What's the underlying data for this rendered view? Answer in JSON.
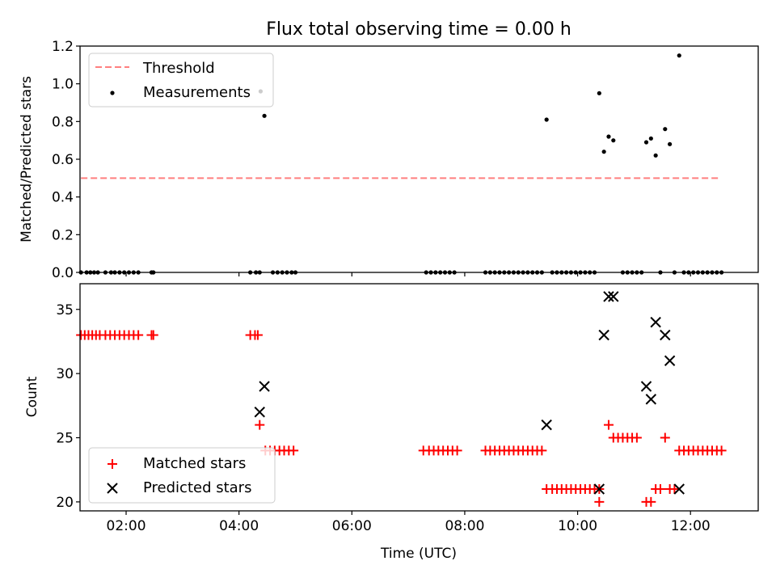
{
  "chart_data": [
    {
      "type": "scatter",
      "title": "Flux total observing time = 0.00 h",
      "xlabel": "",
      "ylabel": "Matched/Predicted stars",
      "xlim": [
        "01:11",
        "13:12"
      ],
      "ylim": [
        0,
        1.2
      ],
      "yticks": [
        "0.0",
        "0.2",
        "0.4",
        "0.6",
        "0.8",
        "1.0",
        "1.2"
      ],
      "legend": {
        "position": "top-left"
      },
      "series": [
        {
          "name": "Threshold",
          "style": "dashed-line",
          "color": "#ff7f7f",
          "points": [
            {
              "x": "01:12",
              "y": 0.5
            },
            {
              "x": "12:31",
              "y": 0.5
            }
          ]
        },
        {
          "name": "Measurements",
          "style": "dots",
          "color": "#000000",
          "points": [
            {
              "x": "01:12",
              "y": 0
            },
            {
              "x": "01:18",
              "y": 0
            },
            {
              "x": "01:22",
              "y": 0
            },
            {
              "x": "01:26",
              "y": 0
            },
            {
              "x": "01:30",
              "y": 0
            },
            {
              "x": "01:38",
              "y": 0
            },
            {
              "x": "01:44",
              "y": 0
            },
            {
              "x": "01:48",
              "y": 0
            },
            {
              "x": "01:53",
              "y": 0
            },
            {
              "x": "01:58",
              "y": 0
            },
            {
              "x": "02:03",
              "y": 0
            },
            {
              "x": "02:08",
              "y": 0
            },
            {
              "x": "02:13",
              "y": 0
            },
            {
              "x": "02:27",
              "y": 0
            },
            {
              "x": "02:29",
              "y": 0
            },
            {
              "x": "04:12",
              "y": 0
            },
            {
              "x": "04:18",
              "y": 0
            },
            {
              "x": "04:22",
              "y": 0
            },
            {
              "x": "04:23",
              "y": 0.96
            },
            {
              "x": "04:27",
              "y": 0.83
            },
            {
              "x": "04:36",
              "y": 0
            },
            {
              "x": "04:41",
              "y": 0
            },
            {
              "x": "04:46",
              "y": 0
            },
            {
              "x": "04:51",
              "y": 0
            },
            {
              "x": "04:56",
              "y": 0
            },
            {
              "x": "05:00",
              "y": 0
            },
            {
              "x": "07:19",
              "y": 0
            },
            {
              "x": "07:24",
              "y": 0
            },
            {
              "x": "07:29",
              "y": 0
            },
            {
              "x": "07:34",
              "y": 0
            },
            {
              "x": "07:39",
              "y": 0
            },
            {
              "x": "07:44",
              "y": 0
            },
            {
              "x": "07:49",
              "y": 0
            },
            {
              "x": "08:22",
              "y": 0
            },
            {
              "x": "08:27",
              "y": 0
            },
            {
              "x": "08:32",
              "y": 0
            },
            {
              "x": "08:37",
              "y": 0
            },
            {
              "x": "08:42",
              "y": 0
            },
            {
              "x": "08:47",
              "y": 0
            },
            {
              "x": "08:52",
              "y": 0
            },
            {
              "x": "08:57",
              "y": 0
            },
            {
              "x": "09:02",
              "y": 0
            },
            {
              "x": "09:07",
              "y": 0
            },
            {
              "x": "09:12",
              "y": 0
            },
            {
              "x": "09:17",
              "y": 0
            },
            {
              "x": "09:22",
              "y": 0
            },
            {
              "x": "09:27",
              "y": 0.81
            },
            {
              "x": "09:33",
              "y": 0
            },
            {
              "x": "09:38",
              "y": 0
            },
            {
              "x": "09:43",
              "y": 0
            },
            {
              "x": "09:48",
              "y": 0
            },
            {
              "x": "09:53",
              "y": 0
            },
            {
              "x": "09:58",
              "y": 0
            },
            {
              "x": "10:03",
              "y": 0
            },
            {
              "x": "10:08",
              "y": 0
            },
            {
              "x": "10:13",
              "y": 0
            },
            {
              "x": "10:18",
              "y": 0
            },
            {
              "x": "10:23",
              "y": 0.95
            },
            {
              "x": "10:28",
              "y": 0.64
            },
            {
              "x": "10:33",
              "y": 0.72
            },
            {
              "x": "10:38",
              "y": 0.7
            },
            {
              "x": "10:48",
              "y": 0
            },
            {
              "x": "10:53",
              "y": 0
            },
            {
              "x": "10:58",
              "y": 0
            },
            {
              "x": "11:03",
              "y": 0
            },
            {
              "x": "11:08",
              "y": 0
            },
            {
              "x": "11:13",
              "y": 0.69
            },
            {
              "x": "11:18",
              "y": 0.71
            },
            {
              "x": "11:23",
              "y": 0.62
            },
            {
              "x": "11:28",
              "y": 0
            },
            {
              "x": "11:33",
              "y": 0.76
            },
            {
              "x": "11:38",
              "y": 0.68
            },
            {
              "x": "11:43",
              "y": 0
            },
            {
              "x": "11:48",
              "y": 1.15
            },
            {
              "x": "11:53",
              "y": 0
            },
            {
              "x": "11:58",
              "y": 0
            },
            {
              "x": "12:03",
              "y": 0
            },
            {
              "x": "12:08",
              "y": 0
            },
            {
              "x": "12:13",
              "y": 0
            },
            {
              "x": "12:18",
              "y": 0
            },
            {
              "x": "12:23",
              "y": 0
            },
            {
              "x": "12:28",
              "y": 0
            },
            {
              "x": "12:33",
              "y": 0
            }
          ]
        }
      ]
    },
    {
      "type": "scatter",
      "title": "",
      "xlabel": "Time (UTC)",
      "ylabel": "Count",
      "xlim": [
        "01:11",
        "13:12"
      ],
      "ylim": [
        19.3,
        37.0
      ],
      "xticks": [
        "02:00",
        "04:00",
        "06:00",
        "08:00",
        "10:00",
        "12:00"
      ],
      "yticks": [
        "20",
        "25",
        "30",
        "35"
      ],
      "legend": {
        "position": "bottom-left"
      },
      "series": [
        {
          "name": "Matched stars",
          "style": "plus",
          "color": "#ff0000",
          "points": [
            {
              "x": "01:12",
              "y": 33
            },
            {
              "x": "01:16",
              "y": 33
            },
            {
              "x": "01:20",
              "y": 33
            },
            {
              "x": "01:24",
              "y": 33
            },
            {
              "x": "01:28",
              "y": 33
            },
            {
              "x": "01:32",
              "y": 33
            },
            {
              "x": "01:38",
              "y": 33
            },
            {
              "x": "01:43",
              "y": 33
            },
            {
              "x": "01:48",
              "y": 33
            },
            {
              "x": "01:53",
              "y": 33
            },
            {
              "x": "01:58",
              "y": 33
            },
            {
              "x": "02:03",
              "y": 33
            },
            {
              "x": "02:08",
              "y": 33
            },
            {
              "x": "02:13",
              "y": 33
            },
            {
              "x": "02:27",
              "y": 33
            },
            {
              "x": "02:29",
              "y": 33
            },
            {
              "x": "04:12",
              "y": 33
            },
            {
              "x": "04:17",
              "y": 33
            },
            {
              "x": "04:20",
              "y": 33
            },
            {
              "x": "04:22",
              "y": 26
            },
            {
              "x": "04:28",
              "y": 24
            },
            {
              "x": "04:33",
              "y": 24
            },
            {
              "x": "04:38",
              "y": 24
            },
            {
              "x": "04:43",
              "y": 24
            },
            {
              "x": "04:48",
              "y": 24
            },
            {
              "x": "04:53",
              "y": 24
            },
            {
              "x": "04:58",
              "y": 24
            },
            {
              "x": "07:16",
              "y": 24
            },
            {
              "x": "07:22",
              "y": 24
            },
            {
              "x": "07:27",
              "y": 24
            },
            {
              "x": "07:32",
              "y": 24
            },
            {
              "x": "07:37",
              "y": 24
            },
            {
              "x": "07:42",
              "y": 24
            },
            {
              "x": "07:47",
              "y": 24
            },
            {
              "x": "07:52",
              "y": 24
            },
            {
              "x": "08:22",
              "y": 24
            },
            {
              "x": "08:27",
              "y": 24
            },
            {
              "x": "08:32",
              "y": 24
            },
            {
              "x": "08:37",
              "y": 24
            },
            {
              "x": "08:42",
              "y": 24
            },
            {
              "x": "08:47",
              "y": 24
            },
            {
              "x": "08:52",
              "y": 24
            },
            {
              "x": "08:57",
              "y": 24
            },
            {
              "x": "09:02",
              "y": 24
            },
            {
              "x": "09:07",
              "y": 24
            },
            {
              "x": "09:12",
              "y": 24
            },
            {
              "x": "09:17",
              "y": 24
            },
            {
              "x": "09:22",
              "y": 24
            },
            {
              "x": "09:27",
              "y": 21
            },
            {
              "x": "09:33",
              "y": 21
            },
            {
              "x": "09:38",
              "y": 21
            },
            {
              "x": "09:43",
              "y": 21
            },
            {
              "x": "09:48",
              "y": 21
            },
            {
              "x": "09:53",
              "y": 21
            },
            {
              "x": "09:58",
              "y": 21
            },
            {
              "x": "10:03",
              "y": 21
            },
            {
              "x": "10:08",
              "y": 21
            },
            {
              "x": "10:13",
              "y": 21
            },
            {
              "x": "10:18",
              "y": 21
            },
            {
              "x": "10:23",
              "y": 21
            },
            {
              "x": "10:23",
              "y": 20
            },
            {
              "x": "10:33",
              "y": 26
            },
            {
              "x": "10:38",
              "y": 25
            },
            {
              "x": "10:43",
              "y": 25
            },
            {
              "x": "10:48",
              "y": 25
            },
            {
              "x": "10:53",
              "y": 25
            },
            {
              "x": "10:58",
              "y": 25
            },
            {
              "x": "11:03",
              "y": 25
            },
            {
              "x": "11:13",
              "y": 20
            },
            {
              "x": "11:18",
              "y": 20
            },
            {
              "x": "11:23",
              "y": 21
            },
            {
              "x": "11:28",
              "y": 21
            },
            {
              "x": "11:33",
              "y": 25
            },
            {
              "x": "11:38",
              "y": 21
            },
            {
              "x": "11:43",
              "y": 21
            },
            {
              "x": "11:48",
              "y": 24
            },
            {
              "x": "11:53",
              "y": 24
            },
            {
              "x": "11:58",
              "y": 24
            },
            {
              "x": "12:03",
              "y": 24
            },
            {
              "x": "12:08",
              "y": 24
            },
            {
              "x": "12:13",
              "y": 24
            },
            {
              "x": "12:18",
              "y": 24
            },
            {
              "x": "12:23",
              "y": 24
            },
            {
              "x": "12:28",
              "y": 24
            },
            {
              "x": "12:33",
              "y": 24
            }
          ]
        },
        {
          "name": "Predicted stars",
          "style": "x",
          "color": "#000000",
          "points": [
            {
              "x": "04:22",
              "y": 27
            },
            {
              "x": "04:27",
              "y": 29
            },
            {
              "x": "09:27",
              "y": 26
            },
            {
              "x": "10:23",
              "y": 21
            },
            {
              "x": "10:28",
              "y": 33
            },
            {
              "x": "10:33",
              "y": 36
            },
            {
              "x": "10:38",
              "y": 36
            },
            {
              "x": "11:13",
              "y": 29
            },
            {
              "x": "11:18",
              "y": 28
            },
            {
              "x": "11:23",
              "y": 34
            },
            {
              "x": "11:33",
              "y": 33
            },
            {
              "x": "11:38",
              "y": 31
            },
            {
              "x": "11:48",
              "y": 21
            }
          ]
        }
      ]
    }
  ]
}
